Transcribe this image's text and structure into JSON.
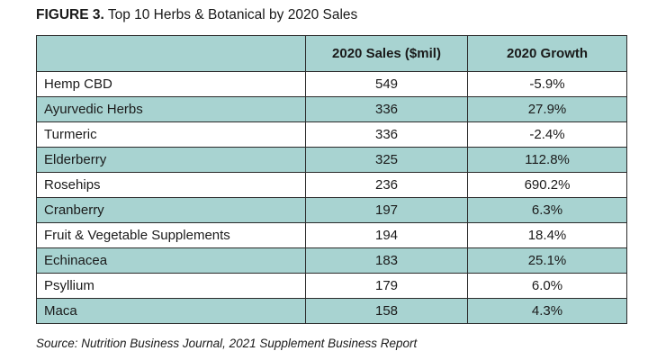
{
  "chart_data": {
    "type": "table",
    "title_prefix": "FIGURE 3.",
    "title": "Top 10 Herbs & Botanical by 2020 Sales",
    "columns": [
      "",
      "2020 Sales ($mil)",
      "2020 Growth"
    ],
    "rows": [
      {
        "name": "Hemp CBD",
        "sales": "549",
        "growth": "-5.9%"
      },
      {
        "name": "Ayurvedic Herbs",
        "sales": "336",
        "growth": "27.9%"
      },
      {
        "name": "Turmeric",
        "sales": "336",
        "growth": "-2.4%"
      },
      {
        "name": "Elderberry",
        "sales": "325",
        "growth": "112.8%"
      },
      {
        "name": "Rosehips",
        "sales": "236",
        "growth": "690.2%"
      },
      {
        "name": "Cranberry",
        "sales": "197",
        "growth": "6.3%"
      },
      {
        "name": "Fruit & Vegetable Supplements",
        "sales": "194",
        "growth": "18.4%"
      },
      {
        "name": "Echinacea",
        "sales": "183",
        "growth": "25.1%"
      },
      {
        "name": "Psyllium",
        "sales": "179",
        "growth": "6.0%"
      },
      {
        "name": "Maca",
        "sales": "158",
        "growth": "4.3%"
      }
    ],
    "source": "Source: Nutrition Business Journal, 2021 Supplement Business Report",
    "colors": {
      "stripe": "#a8d3d1",
      "background": "#ffffff",
      "border": "#2b2b2b"
    }
  }
}
